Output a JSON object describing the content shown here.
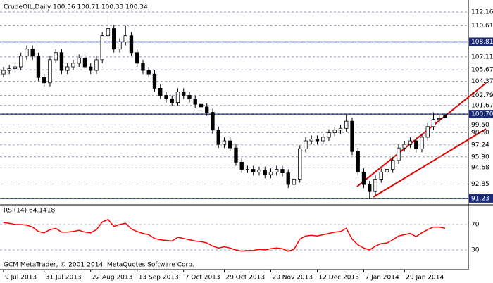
{
  "chart_data": [
    {
      "type": "candlestick",
      "title": "CrudeOIL,Daily  100.56 100.71 100.33 100.34",
      "xlim": [
        -0.6,
        80
      ],
      "xticks": [
        {
          "value": 0,
          "label": "9 Jul 2013"
        },
        {
          "value": 7,
          "label": "31 Jul 2013"
        },
        {
          "value": 15,
          "label": "22 Aug 2013"
        },
        {
          "value": 23,
          "label": "13 Sep 2013"
        },
        {
          "value": 31,
          "label": "7 Oct 2013"
        },
        {
          "value": 38,
          "label": "29 Oct 2013"
        },
        {
          "value": 46,
          "label": "20 Nov 2013"
        },
        {
          "value": 54,
          "label": "12 Dec 2013"
        },
        {
          "value": 62,
          "label": "7 Jan 2014"
        },
        {
          "value": 69,
          "label": "29 Jan 2014"
        }
      ],
      "ylim": [
        90.59,
        113.27
      ],
      "yticks": [
        112.16,
        110.61,
        108.81,
        107.11,
        105.67,
        104.37,
        102.79,
        101.67,
        {
          "value": 100.7,
          "label": "100.70"
        },
        {
          "value": 99.5,
          "label": "99.50"
        },
        {
          "value": 98.6,
          "label": "98.60"
        },
        97.24,
        {
          "value": 95.9,
          "label": "95.90"
        },
        94.68,
        92.85,
        91.23
      ],
      "levels": [
        108.81,
        100.7,
        91.23
      ],
      "level_color": "#1c2a7a",
      "grid": true,
      "color": "#000000",
      "open": [
        105.2,
        105.6,
        105.8,
        106.0,
        107.2,
        108.0,
        107.2,
        104.8,
        104.2,
        106.8,
        107.6,
        105.6,
        106.0,
        106.4,
        107.0,
        106.0,
        105.6,
        106.8,
        109.5,
        110.3,
        108.0,
        108.8,
        109.5,
        107.6,
        106.4,
        105.6,
        105.2,
        103.6,
        102.8,
        102.4,
        102.0,
        103.2,
        102.8,
        102.4,
        101.8,
        101.5,
        100.9,
        98.9,
        97.3,
        97.7,
        96.9,
        95.3,
        94.5,
        94.5,
        94.2,
        94.4,
        93.9,
        94.2,
        94.5,
        94.1,
        92.8,
        93.4,
        96.8,
        97.7,
        97.9,
        97.7,
        98.1,
        98.6,
        98.9,
        99.1,
        99.9,
        96.5,
        94.2,
        92.8,
        92.0,
        93.4,
        94.2,
        94.5,
        95.5,
        96.9,
        97.3,
        97.7,
        96.8,
        98.1,
        99.3,
        100.1,
        100.56
      ],
      "high": [
        106.0,
        106.2,
        106.4,
        107.6,
        108.4,
        108.4,
        107.6,
        105.2,
        107.2,
        108.0,
        108.0,
        106.4,
        106.8,
        107.4,
        107.4,
        106.4,
        107.2,
        109.9,
        112.2,
        110.7,
        109.2,
        110.6,
        109.9,
        108.0,
        106.8,
        106.0,
        105.6,
        104.0,
        103.2,
        102.8,
        103.6,
        103.6,
        103.2,
        102.8,
        102.2,
        101.9,
        101.3,
        99.3,
        98.1,
        98.1,
        97.3,
        95.7,
        94.9,
        94.9,
        94.8,
        94.8,
        94.6,
        94.9,
        94.9,
        94.5,
        93.8,
        97.2,
        98.1,
        98.3,
        98.3,
        98.5,
        99.0,
        99.3,
        99.5,
        100.6,
        100.3,
        96.9,
        94.6,
        93.2,
        93.8,
        94.6,
        94.9,
        95.9,
        97.3,
        97.7,
        98.1,
        98.1,
        98.5,
        99.7,
        100.9,
        100.6,
        100.71
      ],
      "low": [
        104.8,
        105.2,
        105.4,
        105.6,
        106.8,
        106.8,
        104.4,
        103.8,
        103.8,
        106.4,
        105.2,
        105.2,
        105.6,
        106.0,
        105.6,
        105.2,
        105.2,
        106.4,
        109.1,
        107.6,
        107.6,
        108.4,
        107.2,
        106.0,
        105.2,
        104.8,
        103.2,
        102.4,
        102.0,
        101.6,
        101.6,
        102.4,
        102.0,
        101.4,
        101.1,
        100.5,
        98.5,
        96.9,
        96.9,
        96.5,
        94.9,
        94.1,
        94.1,
        93.8,
        93.8,
        93.5,
        93.5,
        93.8,
        93.7,
        92.4,
        92.4,
        93.0,
        96.4,
        97.3,
        97.3,
        97.3,
        97.7,
        98.2,
        98.5,
        98.7,
        96.1,
        93.8,
        92.4,
        91.2,
        91.6,
        93.0,
        93.8,
        94.1,
        95.1,
        96.5,
        96.9,
        96.4,
        96.4,
        97.7,
        98.9,
        99.7,
        100.33
      ],
      "close": [
        105.6,
        105.8,
        106.0,
        107.2,
        108.0,
        107.2,
        104.8,
        104.2,
        106.8,
        107.6,
        105.6,
        106.0,
        106.4,
        107.0,
        106.0,
        105.6,
        106.8,
        109.5,
        110.3,
        108.0,
        108.8,
        109.5,
        107.6,
        106.4,
        105.6,
        105.2,
        103.6,
        102.8,
        102.4,
        102.0,
        103.2,
        102.8,
        102.4,
        101.8,
        101.5,
        100.9,
        98.9,
        97.3,
        97.7,
        96.9,
        95.3,
        94.5,
        94.5,
        94.2,
        94.4,
        93.9,
        94.2,
        94.5,
        94.1,
        92.8,
        93.4,
        96.8,
        97.7,
        97.9,
        97.7,
        98.1,
        98.6,
        98.9,
        99.1,
        99.9,
        96.5,
        94.2,
        92.8,
        92.0,
        93.4,
        94.2,
        94.5,
        95.5,
        96.9,
        97.3,
        97.7,
        96.8,
        98.1,
        99.3,
        100.1,
        100.2,
        100.34
      ]
    },
    {
      "type": "line",
      "title": "RSI(14) 64.1418",
      "ylim": [
        0,
        100
      ],
      "yticks": [
        70,
        30
      ],
      "grid": true,
      "color": "#ff0000",
      "values": [
        73,
        72,
        70,
        70,
        69,
        66,
        59,
        57,
        62,
        64,
        58,
        58,
        59,
        61,
        58,
        57,
        62,
        74,
        78,
        67,
        70,
        72,
        63,
        59,
        56,
        54,
        48,
        46,
        45,
        44,
        50,
        48,
        46,
        44,
        43,
        41,
        36,
        33,
        35,
        33,
        30,
        28,
        29,
        29,
        31,
        30,
        32,
        33,
        32,
        28,
        31,
        47,
        52,
        53,
        52,
        54,
        56,
        58,
        59,
        64,
        47,
        38,
        33,
        30,
        36,
        40,
        41,
        46,
        52,
        54,
        56,
        51,
        57,
        62,
        66,
        66,
        64.1418
      ]
    }
  ],
  "footer": "GCM MetaTrader, © 2001-2014, MetaQuotes Software Corp."
}
